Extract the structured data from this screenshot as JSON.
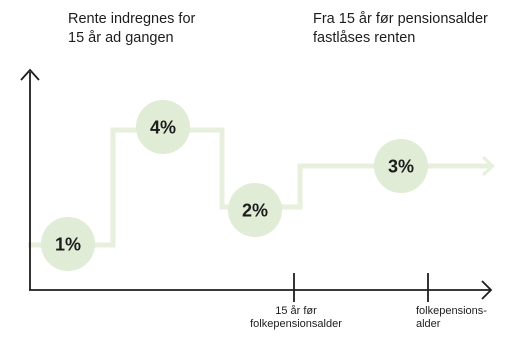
{
  "captions": {
    "left": "Rente indregnes for\n15 år ad gangen",
    "right": "Fra 15 år før pensionsalder\nfastlåses renten"
  },
  "x_axis_ticks": [
    {
      "label": "15 år før\nfolkepensionsalder"
    },
    {
      "label": "folkepensions-\nalder"
    }
  ],
  "rate_steps": [
    {
      "label": "1%",
      "value": 1
    },
    {
      "label": "4%",
      "value": 4
    },
    {
      "label": "2%",
      "value": 2
    },
    {
      "label": "3%",
      "value": 3
    }
  ],
  "colors": {
    "step_line": "#e6f0dd",
    "bubble": "#e0ecd6",
    "axis": "#1d1d1d",
    "text": "#1d1d1d"
  }
}
